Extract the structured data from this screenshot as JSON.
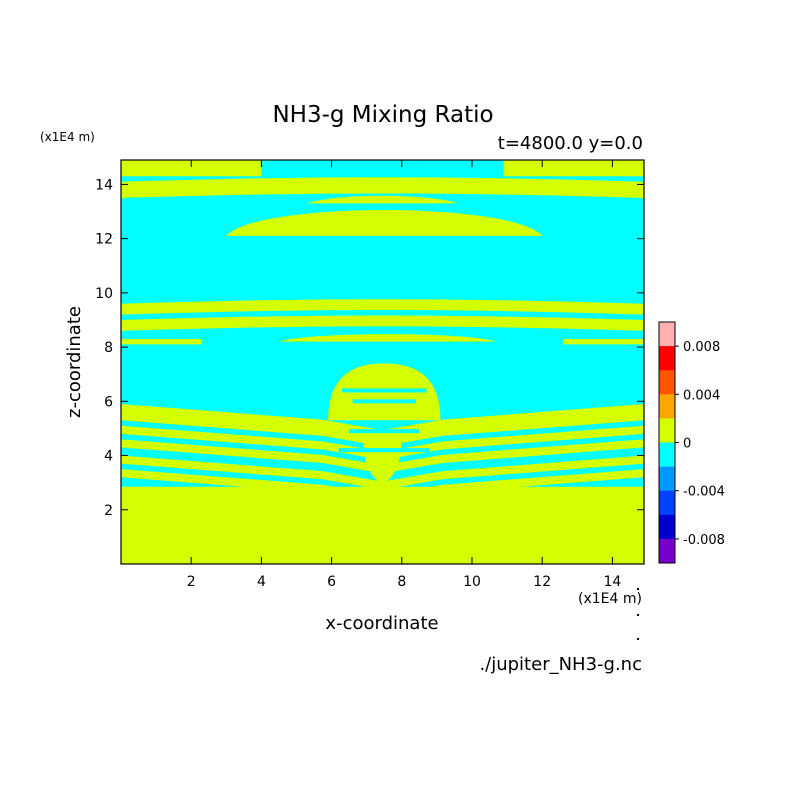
{
  "chart_data": {
    "type": "heatmap",
    "title": "NH3-g Mixing Ratio",
    "subtitle": "t=4800.0 y=0.0",
    "xlabel": "x-coordinate",
    "ylabel": "z-coordinate",
    "x_unit": "(x1E4 m)",
    "y_unit": "(x1E4 m)",
    "source_label": "./jupiter_NH3-g.nc",
    "xlim": [
      0,
      14.9
    ],
    "ylim": [
      0,
      14.9
    ],
    "x_ticks": [
      2,
      4,
      6,
      8,
      10,
      12,
      14
    ],
    "y_ticks": [
      2,
      4,
      6,
      8,
      10,
      12,
      14
    ],
    "background_level": "0",
    "background_color": "#00ffff",
    "feature_color": "#d4ff00",
    "bands": [
      {
        "x0": 0,
        "x1": 4.0,
        "z0": 14.3,
        "z1": 14.9,
        "shape": "edge"
      },
      {
        "x0": 10.9,
        "x1": 14.9,
        "z0": 14.3,
        "z1": 14.9,
        "shape": "edge"
      },
      {
        "x0": 0,
        "x1": 14.9,
        "z0": 13.5,
        "z1": 14.1,
        "shape": "arc"
      },
      {
        "x0": 5.3,
        "x1": 9.6,
        "z0": 13.3,
        "z1": 13.6,
        "shape": "lens"
      },
      {
        "x0": 3.0,
        "x1": 12.0,
        "z0": 12.1,
        "z1": 13.3,
        "shape": "lens"
      },
      {
        "x0": 0,
        "x1": 14.9,
        "z0": 9.2,
        "z1": 9.6,
        "shape": "arc"
      },
      {
        "x0": 0,
        "x1": 14.9,
        "z0": 8.6,
        "z1": 9.0,
        "shape": "arc"
      },
      {
        "x0": 4.6,
        "x1": 10.5,
        "z0": 8.8,
        "z1": 9.1,
        "shape": "lens"
      },
      {
        "x0": 0,
        "x1": 2.3,
        "z0": 8.1,
        "z1": 8.3,
        "shape": "edge"
      },
      {
        "x0": 12.6,
        "x1": 14.9,
        "z0": 8.1,
        "z1": 8.3,
        "shape": "edge"
      },
      {
        "x0": 4.5,
        "x1": 10.7,
        "z0": 8.2,
        "z1": 8.5,
        "shape": "lens"
      },
      {
        "x0": 0,
        "x1": 14.9,
        "z0": 5.3,
        "z1": 5.9,
        "shape": "vee"
      },
      {
        "x0": 0,
        "x1": 14.9,
        "z0": 4.8,
        "z1": 5.1,
        "shape": "vee"
      },
      {
        "x0": 0,
        "x1": 14.9,
        "z0": 4.3,
        "z1": 4.6,
        "shape": "vee"
      },
      {
        "x0": 0,
        "x1": 14.9,
        "z0": 3.7,
        "z1": 4.0,
        "shape": "vee"
      },
      {
        "x0": 0,
        "x1": 14.9,
        "z0": 3.2,
        "z1": 3.5,
        "shape": "vee"
      },
      {
        "x0": 0,
        "x1": 14.9,
        "z0": 0,
        "z1": 2.85,
        "shape": "base"
      },
      {
        "x0": 5.9,
        "x1": 9.1,
        "z0": 5.3,
        "z1": 7.4,
        "shape": "dome"
      },
      {
        "x0": 6.9,
        "x1": 8.0,
        "z0": 3.0,
        "z1": 4.6,
        "shape": "drop"
      }
    ],
    "colorbar": {
      "colors": [
        "#ffb0b0",
        "#ff0000",
        "#ff5500",
        "#ffa500",
        "#d4ff00",
        "#00ffff",
        "#0099ff",
        "#0044ff",
        "#0000cc",
        "#7700cc"
      ],
      "tick_labels": [
        "0.008",
        "0.004",
        "0",
        "-0.004",
        "-0.008"
      ],
      "range": [
        -0.01,
        0.01
      ]
    }
  }
}
